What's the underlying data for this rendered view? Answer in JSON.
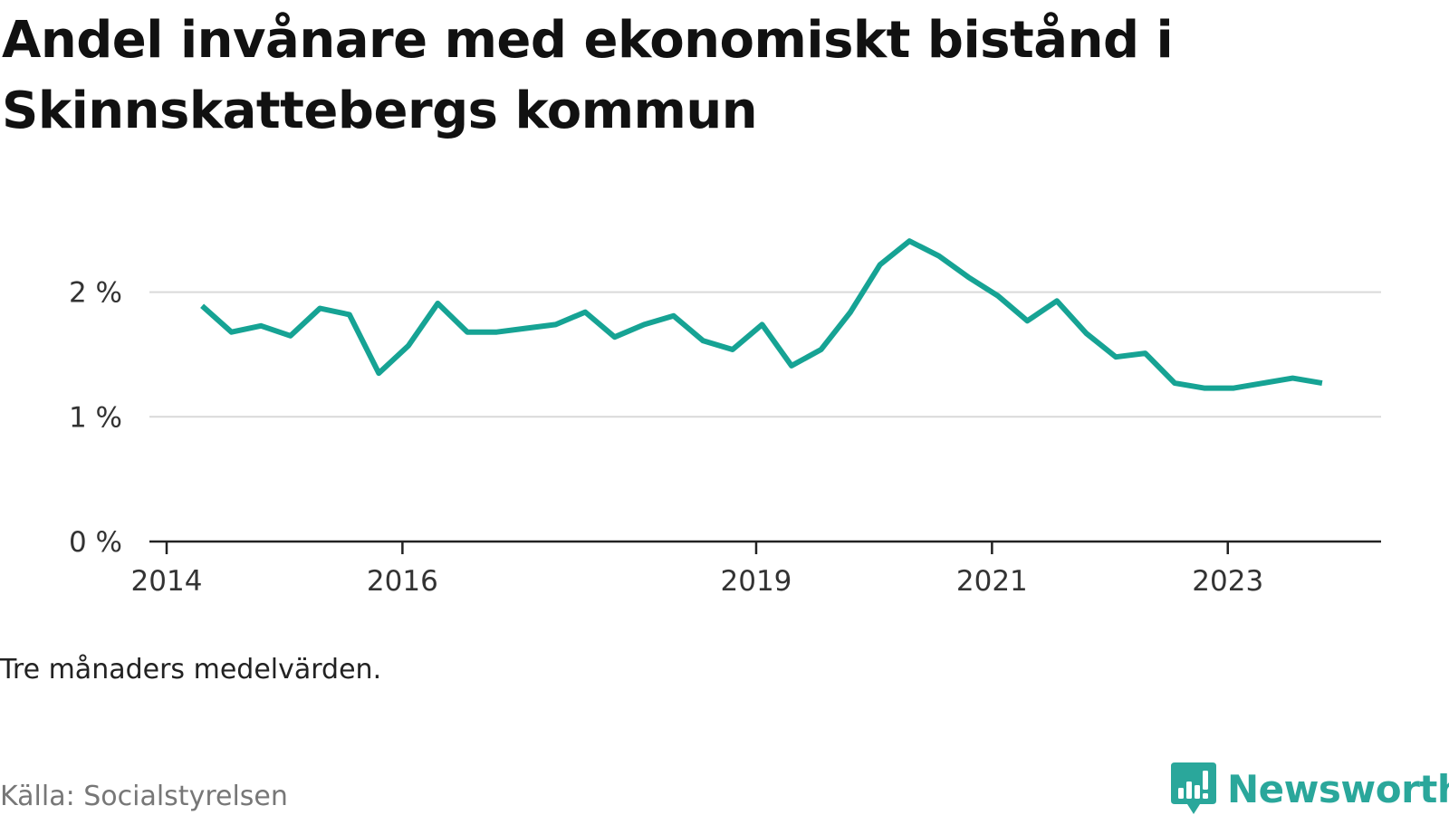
{
  "title": "Andel invånare med ekonomiskt bistånd i Skinnskattebergs kommun",
  "note": "Tre månaders medelvärden.",
  "source": "Källa: Socialstyrelsen",
  "brand": {
    "name": "Newsworthy",
    "color": "#2aa79b",
    "icon": "bar-chart-speech-bubble-icon"
  },
  "chart_data": {
    "type": "line",
    "title": "Andel invånare med ekonomiskt bistånd i Skinnskattebergs kommun",
    "xlabel": "",
    "ylabel": "",
    "ylim": [
      0,
      2.6
    ],
    "xlim": [
      2014.0,
      2024.3
    ],
    "grid": true,
    "line_color": "#16a394",
    "x_ticks": [
      {
        "value": 2014,
        "label": "2014"
      },
      {
        "value": 2016,
        "label": "2016"
      },
      {
        "value": 2019,
        "label": "2019"
      },
      {
        "value": 2021,
        "label": "2021"
      },
      {
        "value": 2023,
        "label": "2023"
      }
    ],
    "y_ticks": [
      {
        "value": 0,
        "label": "0 %"
      },
      {
        "value": 1,
        "label": "1 %"
      },
      {
        "value": 2,
        "label": "2 %"
      }
    ],
    "series": [
      {
        "x": [
          2014.3,
          2014.55,
          2014.8,
          2015.05,
          2015.3,
          2015.55,
          2015.8,
          2016.05,
          2016.3,
          2016.55,
          2016.8,
          2017.05,
          2017.3,
          2017.55,
          2017.8,
          2018.05,
          2018.3,
          2018.55,
          2018.8,
          2019.05,
          2019.3,
          2019.55,
          2019.8,
          2020.05,
          2020.3,
          2020.55,
          2020.8,
          2021.05,
          2021.3,
          2021.55,
          2021.8,
          2022.05,
          2022.3,
          2022.55,
          2022.8,
          2023.05,
          2023.3,
          2023.55,
          2023.8
        ],
        "values": [
          1.89,
          1.68,
          1.73,
          1.65,
          1.87,
          1.82,
          1.35,
          1.57,
          1.91,
          1.68,
          1.68,
          1.71,
          1.74,
          1.84,
          1.64,
          1.74,
          1.81,
          1.61,
          1.54,
          1.74,
          1.41,
          1.54,
          1.84,
          2.22,
          2.41,
          2.29,
          2.12,
          1.97,
          1.77,
          1.93,
          1.67,
          1.48,
          1.51,
          1.27,
          1.23,
          1.23,
          1.27,
          1.31,
          1.27
        ]
      }
    ]
  }
}
